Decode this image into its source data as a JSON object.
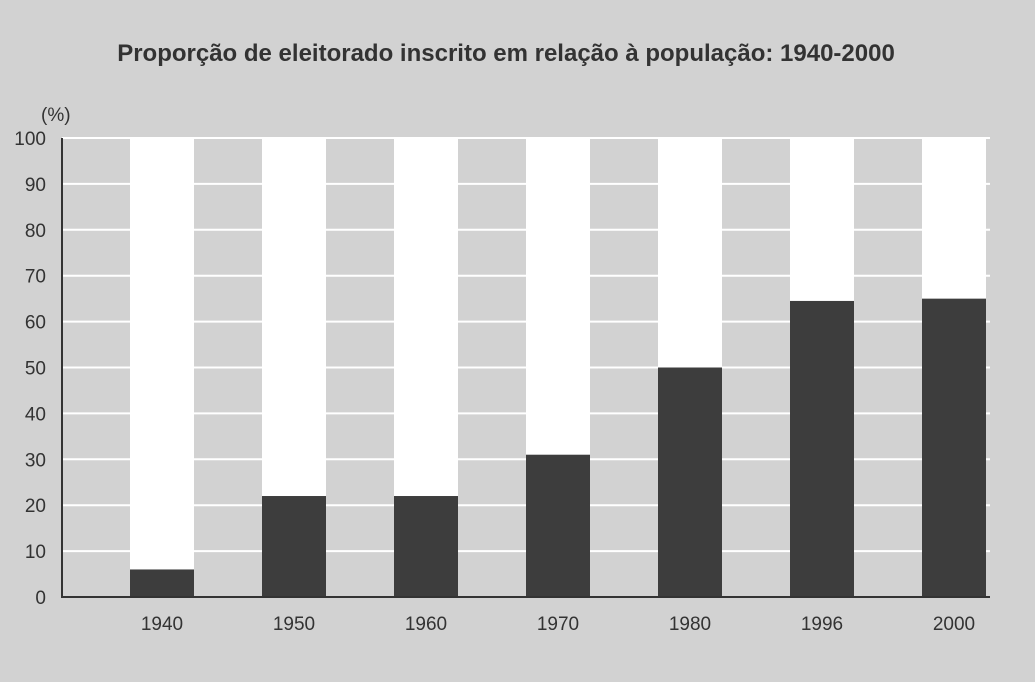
{
  "chart_data": {
    "type": "bar",
    "title": "Proporção de eleitorado inscrito em relação à população: 1940-2000",
    "ylabel": "(%)",
    "xlabel": "",
    "ylim": [
      0,
      100
    ],
    "yticks": [
      0,
      10,
      20,
      30,
      40,
      50,
      60,
      70,
      80,
      90,
      100
    ],
    "categories": [
      "1940",
      "1950",
      "1960",
      "1970",
      "1980",
      "1996",
      "2000"
    ],
    "values": [
      6,
      22,
      22,
      31,
      50,
      64.5,
      65
    ],
    "grid": true,
    "colors": {
      "background": "#d2d2d2",
      "bar": "#3d3d3d",
      "bar_remainder": "#ffffff",
      "grid": "#ffffff",
      "axis": "#333333"
    }
  }
}
